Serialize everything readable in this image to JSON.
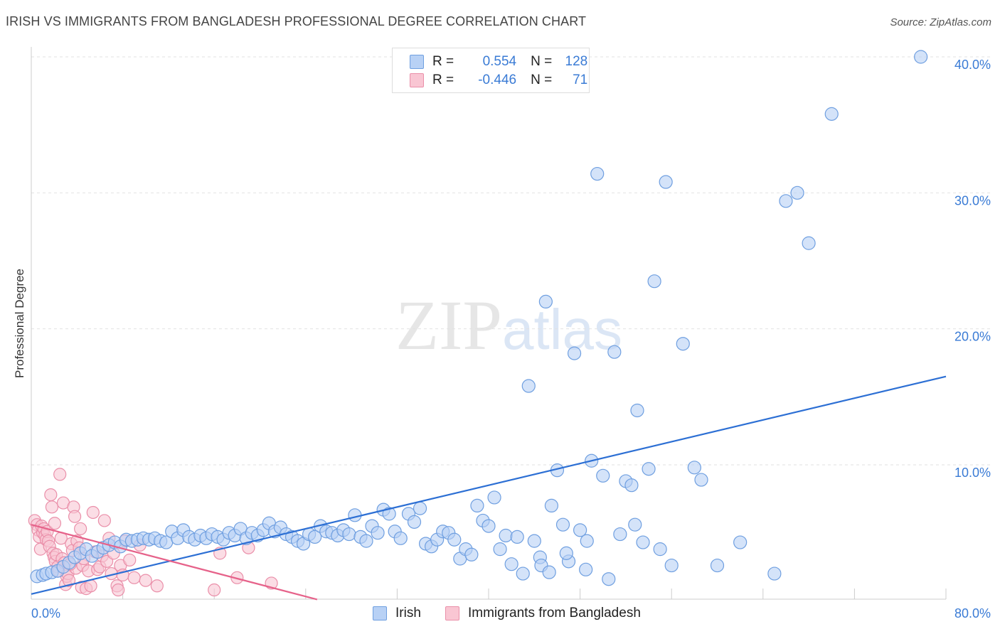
{
  "title": "IRISH VS IMMIGRANTS FROM BANGLADESH PROFESSIONAL DEGREE CORRELATION CHART",
  "source": "Source: ZipAtlas.com",
  "watermark": {
    "zip": "ZIP",
    "atlas": "atlas"
  },
  "chart_data": {
    "type": "scatter",
    "ylabel": "Professional Degree",
    "xlabel": "",
    "xlim": [
      0,
      80
    ],
    "ylim": [
      0,
      42
    ],
    "x_tick_labels": [
      "0.0%",
      "80.0%"
    ],
    "y_ticks": [
      10,
      20,
      30,
      40
    ],
    "y_tick_labels": [
      "10.0%",
      "20.0%",
      "30.0%",
      "40.0%"
    ],
    "legend": {
      "irish": {
        "r_label": "R =",
        "r_value": "0.554",
        "n_label": "N =",
        "n_value": "128"
      },
      "bangladesh": {
        "r_label": "R =",
        "r_value": "-0.446",
        "n_label": "N =",
        "n_value": "71"
      }
    },
    "series": [
      {
        "name": "Irish",
        "color": "#6f9fe0",
        "fill": "#b8d1f5",
        "trendline": {
          "x": [
            0,
            80
          ],
          "y": [
            0.5,
            16.5
          ],
          "color": "#2c6fd4"
        },
        "points": [
          [
            0.5,
            1.8
          ],
          [
            1,
            1.9
          ],
          [
            1.3,
            2.0
          ],
          [
            1.8,
            2.1
          ],
          [
            2.3,
            2.2
          ],
          [
            2.8,
            2.5
          ],
          [
            3.3,
            2.8
          ],
          [
            3.8,
            3.2
          ],
          [
            4.3,
            3.5
          ],
          [
            4.8,
            3.8
          ],
          [
            5.3,
            3.3
          ],
          [
            5.8,
            3.6
          ],
          [
            6.3,
            3.9
          ],
          [
            6.8,
            4.1
          ],
          [
            7.3,
            4.3
          ],
          [
            7.8,
            4.0
          ],
          [
            8.3,
            4.5
          ],
          [
            8.8,
            4.4
          ],
          [
            9.3,
            4.5
          ],
          [
            9.8,
            4.6
          ],
          [
            10.3,
            4.5
          ],
          [
            10.8,
            4.6
          ],
          [
            11.3,
            4.4
          ],
          [
            11.8,
            4.3
          ],
          [
            12.3,
            5.1
          ],
          [
            12.8,
            4.6
          ],
          [
            13.3,
            5.2
          ],
          [
            13.8,
            4.7
          ],
          [
            14.3,
            4.5
          ],
          [
            14.8,
            4.8
          ],
          [
            15.3,
            4.6
          ],
          [
            15.8,
            4.9
          ],
          [
            16.3,
            4.7
          ],
          [
            16.8,
            4.5
          ],
          [
            17.3,
            5.0
          ],
          [
            17.8,
            4.8
          ],
          [
            18.3,
            5.3
          ],
          [
            18.8,
            4.6
          ],
          [
            19.3,
            5.0
          ],
          [
            19.8,
            4.8
          ],
          [
            20.3,
            5.2
          ],
          [
            20.8,
            5.7
          ],
          [
            21.3,
            5.1
          ],
          [
            21.8,
            5.4
          ],
          [
            22.3,
            4.9
          ],
          [
            22.8,
            4.7
          ],
          [
            23.3,
            4.4
          ],
          [
            23.8,
            4.2
          ],
          [
            24.3,
            4.9
          ],
          [
            24.8,
            4.7
          ],
          [
            25.3,
            5.5
          ],
          [
            25.8,
            5.1
          ],
          [
            26.3,
            5.0
          ],
          [
            26.8,
            4.8
          ],
          [
            27.3,
            5.2
          ],
          [
            27.8,
            4.9
          ],
          [
            28.3,
            6.3
          ],
          [
            28.8,
            4.7
          ],
          [
            29.3,
            4.4
          ],
          [
            29.8,
            5.5
          ],
          [
            30.3,
            5.0
          ],
          [
            30.8,
            6.7
          ],
          [
            31.3,
            6.4
          ],
          [
            31.8,
            5.1
          ],
          [
            32.3,
            4.6
          ],
          [
            33,
            6.4
          ],
          [
            33.5,
            5.8
          ],
          [
            34,
            6.8
          ],
          [
            34.5,
            4.2
          ],
          [
            35,
            4.0
          ],
          [
            35.5,
            4.5
          ],
          [
            36,
            5.1
          ],
          [
            36.5,
            5.0
          ],
          [
            37,
            4.5
          ],
          [
            37.5,
            3.1
          ],
          [
            38,
            3.8
          ],
          [
            38.5,
            3.4
          ],
          [
            39,
            7.0
          ],
          [
            39.5,
            5.9
          ],
          [
            40,
            5.5
          ],
          [
            40.5,
            7.6
          ],
          [
            41,
            3.8
          ],
          [
            41.5,
            4.8
          ],
          [
            42,
            2.7
          ],
          [
            42.5,
            4.7
          ],
          [
            43,
            2.0
          ],
          [
            43.5,
            15.8
          ],
          [
            44,
            4.4
          ],
          [
            44.5,
            3.2
          ],
          [
            45,
            22.0
          ],
          [
            45.5,
            7.0
          ],
          [
            46,
            9.6
          ],
          [
            46.5,
            5.6
          ],
          [
            47,
            2.9
          ],
          [
            47.5,
            18.2
          ],
          [
            48,
            5.2
          ],
          [
            48.5,
            2.3
          ],
          [
            49,
            10.3
          ],
          [
            49.5,
            31.4
          ],
          [
            50,
            9.2
          ],
          [
            50.5,
            1.6
          ],
          [
            51,
            18.3
          ],
          [
            51.5,
            4.9
          ],
          [
            52,
            8.8
          ],
          [
            52.5,
            8.5
          ],
          [
            53,
            14.0
          ],
          [
            53.5,
            4.3
          ],
          [
            54,
            9.7
          ],
          [
            54.5,
            23.5
          ],
          [
            55,
            3.8
          ],
          [
            55.5,
            30.8
          ],
          [
            56,
            2.6
          ],
          [
            57,
            18.9
          ],
          [
            58,
            9.8
          ],
          [
            58.6,
            8.9
          ],
          [
            60,
            2.6
          ],
          [
            62,
            4.3
          ],
          [
            65,
            2.0
          ],
          [
            66,
            29.4
          ],
          [
            68,
            26.3
          ],
          [
            67,
            30.0
          ],
          [
            70,
            35.8
          ],
          [
            77.8,
            40.0
          ],
          [
            46.8,
            3.5
          ],
          [
            44.6,
            2.6
          ],
          [
            45.3,
            2.1
          ],
          [
            48.6,
            4.4
          ],
          [
            52.8,
            5.6
          ]
        ]
      },
      {
        "name": "Immigrants from Bangladesh",
        "color": "#ea8fa9",
        "fill": "#f9c6d3",
        "trendline": {
          "x": [
            0,
            25
          ],
          "y": [
            5.6,
            0.1
          ],
          "color": "#e6628a"
        },
        "points": [
          [
            0.3,
            5.9
          ],
          [
            0.5,
            5.6
          ],
          [
            0.6,
            5.2
          ],
          [
            0.7,
            4.7
          ],
          [
            0.8,
            3.8
          ],
          [
            0.9,
            5.5
          ],
          [
            1.0,
            5.0
          ],
          [
            1.1,
            5.3
          ],
          [
            1.2,
            4.8
          ],
          [
            1.3,
            4.5
          ],
          [
            1.4,
            5.1
          ],
          [
            1.5,
            4.4
          ],
          [
            1.6,
            4.0
          ],
          [
            1.7,
            7.8
          ],
          [
            1.8,
            6.9
          ],
          [
            1.9,
            3.5
          ],
          [
            2.0,
            3.2
          ],
          [
            2.1,
            2.9
          ],
          [
            2.2,
            3.4
          ],
          [
            2.3,
            2.5
          ],
          [
            2.4,
            2.2
          ],
          [
            2.5,
            9.3
          ],
          [
            2.6,
            4.6
          ],
          [
            2.7,
            3.1
          ],
          [
            2.8,
            7.2
          ],
          [
            2.9,
            2.8
          ],
          [
            3.0,
            1.2
          ],
          [
            3.1,
            1.8
          ],
          [
            3.2,
            2.0
          ],
          [
            3.3,
            1.5
          ],
          [
            3.5,
            4.2
          ],
          [
            3.6,
            3.7
          ],
          [
            3.7,
            6.9
          ],
          [
            3.8,
            6.2
          ],
          [
            3.9,
            2.4
          ],
          [
            4.0,
            4.4
          ],
          [
            4.2,
            3.9
          ],
          [
            4.3,
            5.3
          ],
          [
            4.4,
            1.0
          ],
          [
            4.5,
            2.6
          ],
          [
            4.6,
            3.1
          ],
          [
            4.8,
            0.9
          ],
          [
            5.0,
            2.2
          ],
          [
            5.2,
            1.1
          ],
          [
            5.4,
            6.5
          ],
          [
            5.6,
            3.6
          ],
          [
            5.8,
            2.3
          ],
          [
            6.0,
            2.5
          ],
          [
            6.2,
            3.3
          ],
          [
            6.4,
            5.9
          ],
          [
            6.6,
            2.9
          ],
          [
            6.8,
            4.6
          ],
          [
            7.0,
            2.0
          ],
          [
            7.2,
            3.5
          ],
          [
            7.5,
            1.1
          ],
          [
            7.6,
            0.8
          ],
          [
            7.8,
            2.6
          ],
          [
            8.0,
            1.9
          ],
          [
            8.2,
            4.4
          ],
          [
            8.6,
            3.0
          ],
          [
            9.0,
            1.7
          ],
          [
            9.5,
            4.1
          ],
          [
            10.0,
            1.5
          ],
          [
            11.0,
            1.1
          ],
          [
            16.0,
            0.8
          ],
          [
            16.5,
            3.5
          ],
          [
            18.0,
            1.7
          ],
          [
            19.0,
            3.9
          ],
          [
            21.0,
            1.3
          ],
          [
            3.4,
            2.7
          ],
          [
            2.05,
            5.7
          ]
        ]
      }
    ]
  }
}
